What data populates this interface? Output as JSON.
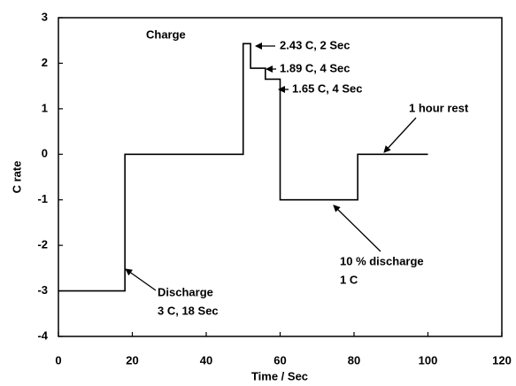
{
  "chart_data": {
    "type": "line",
    "x_label": "Time / Sec",
    "y_label": "C rate",
    "x": [
      0,
      18,
      18,
      50,
      50,
      52,
      52,
      56,
      56,
      60,
      60,
      81,
      81,
      100
    ],
    "values": [
      -3,
      -3,
      0,
      0,
      2.43,
      2.43,
      1.89,
      1.89,
      1.65,
      1.65,
      -1,
      -1,
      0,
      0
    ],
    "color": "#000000",
    "xlim": [
      0,
      120
    ],
    "xticks": [
      0,
      20,
      40,
      60,
      80,
      100,
      120
    ],
    "ylim": [
      -4,
      3
    ],
    "yticks": [
      -4,
      -3,
      -2,
      -1,
      0,
      1,
      2,
      3
    ],
    "grid": false,
    "annotations": [
      {
        "lines": [
          "Charge"
        ]
      },
      {
        "lines": [
          "2.43 C, 2 Sec"
        ]
      },
      {
        "lines": [
          "1.89 C, 4 Sec"
        ]
      },
      {
        "lines": [
          "1.65 C, 4 Sec"
        ]
      },
      {
        "lines": [
          "1 hour rest"
        ]
      },
      {
        "lines": [
          "10 % discharge",
          "1 C"
        ]
      },
      {
        "lines": [
          "Discharge",
          "3 C, 18 Sec"
        ]
      }
    ]
  }
}
